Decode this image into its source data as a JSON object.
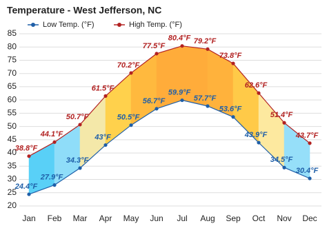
{
  "chart_data": {
    "type": "line",
    "title": "Temperature - West Jefferson, NC",
    "categories": [
      "Jan",
      "Feb",
      "Mar",
      "Apr",
      "May",
      "Jun",
      "Jul",
      "Aug",
      "Sep",
      "Oct",
      "Nov",
      "Dec"
    ],
    "series": [
      {
        "name": "Low Temp. (°F)",
        "color": "#1f5fa8",
        "values": [
          24.4,
          27.9,
          34.3,
          43,
          50.5,
          56.7,
          59.9,
          57.7,
          53.6,
          43.9,
          34.5,
          30.4
        ],
        "value_labels": [
          "24.4°F",
          "27.9°F",
          "34.3°F",
          "43°F",
          "50.5°F",
          "56.7°F",
          "59.9°F",
          "57.7°F",
          "53.6°F",
          "43.9°F",
          "34.5°F",
          "30.4°F"
        ]
      },
      {
        "name": "High Temp. (°F)",
        "color": "#b22222",
        "values": [
          38.8,
          44.1,
          50.7,
          61.5,
          70.2,
          77.5,
          80.4,
          79.2,
          73.8,
          62.6,
          51.4,
          43.7
        ],
        "value_labels": [
          "38.8°F",
          "44.1°F",
          "50.7°F",
          "61.5°F",
          "70.2°F",
          "77.5°F",
          "80.4°F",
          "79.2°F",
          "73.8°F",
          "62.6°F",
          "51.4°F",
          "43.7°F"
        ]
      }
    ],
    "ylim": [
      20,
      85
    ],
    "yticks": [
      20,
      25,
      30,
      35,
      40,
      45,
      50,
      55,
      60,
      65,
      70,
      75,
      80,
      85
    ],
    "grid": true
  }
}
